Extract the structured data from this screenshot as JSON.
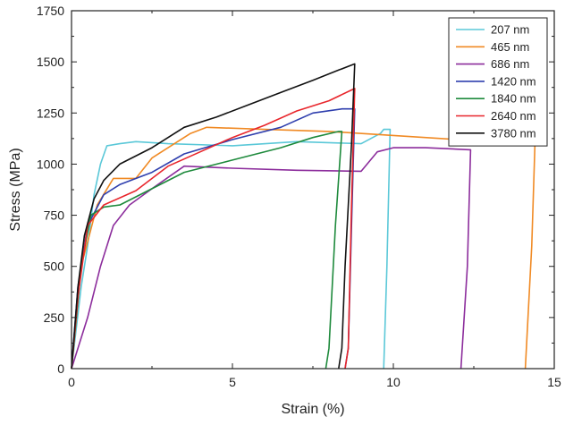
{
  "chart_data": {
    "type": "line",
    "title": "",
    "xlabel": "Strain (%)",
    "ylabel": "Stress (MPa)",
    "xlim": [
      0,
      15
    ],
    "ylim": [
      0,
      1750
    ],
    "x_ticks": [
      0,
      5,
      10,
      15
    ],
    "y_ticks": [
      0,
      250,
      500,
      750,
      1000,
      1250,
      1500,
      1750
    ],
    "grid": false,
    "legend": {
      "placement": "top-right"
    },
    "series": [
      {
        "name": "207 nm",
        "color": "#5bc8d8",
        "x": [
          0,
          0.3,
          0.5,
          0.7,
          0.9,
          1.1,
          1.5,
          2.0,
          3.0,
          5.0,
          7.0,
          9.0,
          9.6,
          9.7,
          9.9,
          9.8,
          9.7
        ],
        "y": [
          0,
          400,
          600,
          850,
          1000,
          1090,
          1100,
          1110,
          1100,
          1090,
          1110,
          1100,
          1150,
          1170,
          1170,
          500,
          0
        ]
      },
      {
        "name": "465 nm",
        "color": "#f08a24",
        "x": [
          0,
          0.3,
          0.8,
          1.3,
          2.0,
          2.5,
          3.0,
          3.7,
          4.2,
          6.0,
          8.0,
          10.0,
          12.0,
          14.4,
          14.3,
          14.1
        ],
        "y": [
          0,
          500,
          800,
          930,
          930,
          1030,
          1080,
          1150,
          1180,
          1170,
          1160,
          1140,
          1120,
          1100,
          600,
          0
        ]
      },
      {
        "name": "686 nm",
        "color": "#8c2d9c",
        "x": [
          0,
          0.5,
          0.9,
          1.3,
          1.8,
          2.5,
          3.5,
          5.0,
          7.0,
          9.0,
          9.5,
          10.0,
          11.0,
          12.4,
          12.3,
          12.1
        ],
        "y": [
          0,
          250,
          500,
          700,
          800,
          880,
          990,
          980,
          970,
          965,
          1060,
          1080,
          1080,
          1070,
          500,
          0
        ]
      },
      {
        "name": "1420 nm",
        "color": "#2f3fae",
        "x": [
          0,
          0.2,
          0.5,
          1.0,
          1.5,
          2.5,
          3.5,
          5.0,
          6.5,
          7.5,
          8.4,
          8.8,
          8.7,
          8.6,
          8.5
        ],
        "y": [
          0,
          400,
          700,
          850,
          900,
          960,
          1050,
          1120,
          1180,
          1250,
          1270,
          1270,
          700,
          100,
          0
        ]
      },
      {
        "name": "1840 nm",
        "color": "#1e8a3c",
        "x": [
          0,
          0.3,
          0.6,
          1.0,
          1.5,
          2.5,
          3.5,
          5.0,
          6.5,
          7.5,
          8.3,
          8.4,
          8.2,
          8.0,
          7.9
        ],
        "y": [
          0,
          500,
          750,
          790,
          800,
          880,
          960,
          1020,
          1080,
          1130,
          1160,
          1160,
          700,
          100,
          0
        ]
      },
      {
        "name": "2640 nm",
        "color": "#e8262c",
        "x": [
          0,
          0.2,
          0.5,
          1.0,
          2.0,
          3.0,
          4.0,
          5.0,
          6.0,
          7.0,
          8.0,
          8.8,
          8.7,
          8.6,
          8.5
        ],
        "y": [
          0,
          350,
          700,
          800,
          870,
          990,
          1060,
          1130,
          1190,
          1260,
          1310,
          1370,
          800,
          100,
          0
        ]
      },
      {
        "name": "3780 nm",
        "color": "#111111",
        "x": [
          0,
          0.2,
          0.4,
          0.7,
          1.0,
          1.5,
          2.5,
          3.5,
          4.5,
          5.5,
          6.5,
          7.5,
          8.3,
          8.8,
          8.7,
          8.5,
          8.4,
          8.3
        ],
        "y": [
          0,
          400,
          650,
          830,
          920,
          1000,
          1080,
          1180,
          1230,
          1290,
          1350,
          1410,
          1460,
          1490,
          1100,
          500,
          100,
          0
        ]
      }
    ]
  }
}
